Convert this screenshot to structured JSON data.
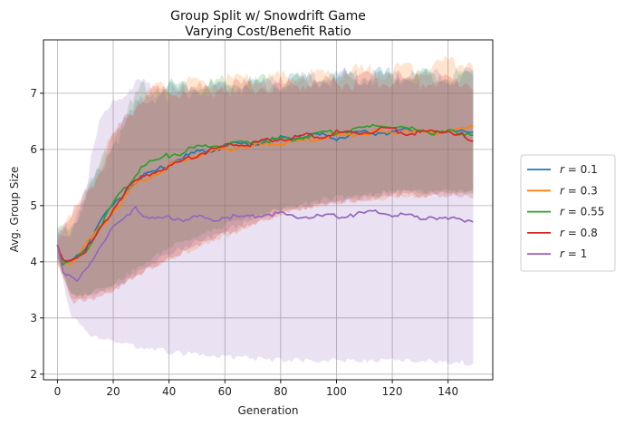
{
  "chart_data": {
    "type": "line",
    "title_lines": [
      "Group Split w/ Snowdrift Game",
      "Varying Cost/Benefit Ratio"
    ],
    "xlabel": "Generation",
    "ylabel": "Avg. Group Size",
    "xlim": [
      -5,
      156
    ],
    "ylim": [
      1.9,
      7.95
    ],
    "xticks": [
      0,
      20,
      40,
      60,
      80,
      100,
      120,
      140
    ],
    "yticks": [
      2,
      3,
      4,
      5,
      6,
      7
    ],
    "grid": true,
    "legend_position": "right-outside",
    "bands_shown": true,
    "series": [
      {
        "name": "r = 0.1",
        "legend_prefix": "r = ",
        "legend_value": "0.1",
        "color": "#1f77b4",
        "points": [
          [
            0,
            4.3
          ],
          [
            2,
            3.98
          ],
          [
            5,
            3.98
          ],
          [
            10,
            4.25
          ],
          [
            15,
            4.7
          ],
          [
            20,
            5.0
          ],
          [
            25,
            5.3
          ],
          [
            30,
            5.5
          ],
          [
            35,
            5.6
          ],
          [
            40,
            5.75
          ],
          [
            45,
            5.85
          ],
          [
            50,
            5.95
          ],
          [
            55,
            6.0
          ],
          [
            60,
            6.05
          ],
          [
            65,
            6.1
          ],
          [
            70,
            6.1
          ],
          [
            75,
            6.15
          ],
          [
            80,
            6.2
          ],
          [
            85,
            6.2
          ],
          [
            90,
            6.25
          ],
          [
            95,
            6.25
          ],
          [
            100,
            6.2
          ],
          [
            105,
            6.25
          ],
          [
            110,
            6.3
          ],
          [
            115,
            6.3
          ],
          [
            120,
            6.3
          ],
          [
            125,
            6.35
          ],
          [
            130,
            6.35
          ],
          [
            135,
            6.3
          ],
          [
            140,
            6.3
          ],
          [
            145,
            6.35
          ],
          [
            149,
            6.3
          ]
        ],
        "band": [
          [
            0,
            4.1,
            4.5
          ],
          [
            5,
            3.45,
            4.6
          ],
          [
            10,
            3.45,
            5.1
          ],
          [
            20,
            3.6,
            6.1
          ],
          [
            30,
            3.9,
            6.9
          ],
          [
            40,
            4.2,
            7.05
          ],
          [
            60,
            4.6,
            7.1
          ],
          [
            80,
            5.0,
            7.2
          ],
          [
            100,
            5.1,
            7.3
          ],
          [
            120,
            5.3,
            7.3
          ],
          [
            149,
            5.3,
            7.3
          ]
        ]
      },
      {
        "name": "r = 0.3",
        "legend_prefix": "r = ",
        "legend_value": "0.3",
        "color": "#ff7f0e",
        "points": [
          [
            0,
            4.3
          ],
          [
            2,
            4.0
          ],
          [
            5,
            4.0
          ],
          [
            10,
            4.3
          ],
          [
            15,
            4.6
          ],
          [
            20,
            4.9
          ],
          [
            25,
            5.2
          ],
          [
            30,
            5.45
          ],
          [
            35,
            5.55
          ],
          [
            40,
            5.7
          ],
          [
            45,
            5.8
          ],
          [
            50,
            5.9
          ],
          [
            55,
            5.95
          ],
          [
            60,
            6.0
          ],
          [
            65,
            6.05
          ],
          [
            70,
            6.05
          ],
          [
            75,
            6.1
          ],
          [
            80,
            6.1
          ],
          [
            85,
            6.15
          ],
          [
            90,
            6.15
          ],
          [
            95,
            6.2
          ],
          [
            100,
            6.25
          ],
          [
            105,
            6.25
          ],
          [
            110,
            6.3
          ],
          [
            115,
            6.3
          ],
          [
            120,
            6.3
          ],
          [
            125,
            6.35
          ],
          [
            130,
            6.3
          ],
          [
            135,
            6.3
          ],
          [
            140,
            6.35
          ],
          [
            145,
            6.35
          ],
          [
            149,
            6.4
          ]
        ],
        "band": [
          [
            0,
            4.05,
            4.55
          ],
          [
            5,
            3.4,
            4.7
          ],
          [
            10,
            3.4,
            5.2
          ],
          [
            20,
            3.55,
            6.2
          ],
          [
            30,
            3.85,
            7.0
          ],
          [
            40,
            4.1,
            7.1
          ],
          [
            60,
            4.5,
            7.2
          ],
          [
            80,
            4.9,
            7.25
          ],
          [
            100,
            5.1,
            7.35
          ],
          [
            120,
            5.2,
            7.4
          ],
          [
            149,
            5.3,
            7.6
          ]
        ]
      },
      {
        "name": "r = 0.55",
        "legend_prefix": "r = ",
        "legend_value": "0.55",
        "color": "#2ca02c",
        "points": [
          [
            0,
            4.3
          ],
          [
            2,
            3.95
          ],
          [
            5,
            4.0
          ],
          [
            10,
            4.2
          ],
          [
            15,
            4.6
          ],
          [
            20,
            5.05
          ],
          [
            25,
            5.35
          ],
          [
            30,
            5.7
          ],
          [
            35,
            5.8
          ],
          [
            40,
            5.9
          ],
          [
            45,
            5.95
          ],
          [
            50,
            6.05
          ],
          [
            55,
            6.05
          ],
          [
            60,
            6.1
          ],
          [
            65,
            6.1
          ],
          [
            70,
            6.15
          ],
          [
            75,
            6.15
          ],
          [
            80,
            6.2
          ],
          [
            85,
            6.2
          ],
          [
            90,
            6.25
          ],
          [
            95,
            6.3
          ],
          [
            100,
            6.3
          ],
          [
            105,
            6.35
          ],
          [
            110,
            6.35
          ],
          [
            115,
            6.45
          ],
          [
            120,
            6.4
          ],
          [
            125,
            6.35
          ],
          [
            130,
            6.35
          ],
          [
            135,
            6.3
          ],
          [
            140,
            6.3
          ],
          [
            145,
            6.3
          ],
          [
            149,
            6.3
          ]
        ],
        "band": [
          [
            0,
            4.1,
            4.55
          ],
          [
            5,
            3.45,
            4.65
          ],
          [
            10,
            3.45,
            5.15
          ],
          [
            20,
            3.65,
            6.25
          ],
          [
            30,
            4.0,
            7.05
          ],
          [
            40,
            4.3,
            7.15
          ],
          [
            60,
            4.7,
            7.15
          ],
          [
            80,
            5.0,
            7.2
          ],
          [
            100,
            5.2,
            7.25
          ],
          [
            120,
            5.3,
            7.3
          ],
          [
            149,
            5.3,
            7.25
          ]
        ]
      },
      {
        "name": "r = 0.8",
        "legend_prefix": "r = ",
        "legend_value": "0.8",
        "color": "#d62728",
        "points": [
          [
            0,
            4.3
          ],
          [
            2,
            4.0
          ],
          [
            5,
            4.05
          ],
          [
            10,
            4.2
          ],
          [
            15,
            4.55
          ],
          [
            20,
            4.95
          ],
          [
            25,
            5.3
          ],
          [
            30,
            5.5
          ],
          [
            35,
            5.6
          ],
          [
            40,
            5.7
          ],
          [
            45,
            5.8
          ],
          [
            50,
            5.9
          ],
          [
            55,
            6.0
          ],
          [
            60,
            6.05
          ],
          [
            65,
            6.1
          ],
          [
            70,
            6.1
          ],
          [
            75,
            6.15
          ],
          [
            80,
            6.2
          ],
          [
            85,
            6.2
          ],
          [
            90,
            6.25
          ],
          [
            95,
            6.25
          ],
          [
            100,
            6.3
          ],
          [
            105,
            6.3
          ],
          [
            110,
            6.3
          ],
          [
            115,
            6.35
          ],
          [
            120,
            6.35
          ],
          [
            125,
            6.3
          ],
          [
            130,
            6.3
          ],
          [
            135,
            6.3
          ],
          [
            140,
            6.35
          ],
          [
            145,
            6.25
          ],
          [
            149,
            6.1
          ]
        ],
        "band": [
          [
            0,
            4.05,
            4.55
          ],
          [
            5,
            3.35,
            4.75
          ],
          [
            10,
            3.35,
            5.2
          ],
          [
            20,
            3.55,
            6.15
          ],
          [
            30,
            3.85,
            6.95
          ],
          [
            40,
            4.1,
            7.05
          ],
          [
            60,
            4.55,
            7.1
          ],
          [
            80,
            4.9,
            7.15
          ],
          [
            100,
            5.1,
            7.2
          ],
          [
            120,
            5.25,
            7.25
          ],
          [
            149,
            5.2,
            7.2
          ]
        ]
      },
      {
        "name": "r = 1",
        "legend_prefix": "r = ",
        "legend_value": "1",
        "color": "#9467bd",
        "points": [
          [
            0,
            4.3
          ],
          [
            2,
            3.85
          ],
          [
            5,
            3.7
          ],
          [
            7,
            3.65
          ],
          [
            10,
            3.85
          ],
          [
            15,
            4.25
          ],
          [
            20,
            4.6
          ],
          [
            25,
            4.8
          ],
          [
            28,
            5.0
          ],
          [
            30,
            4.85
          ],
          [
            35,
            4.75
          ],
          [
            40,
            4.8
          ],
          [
            45,
            4.75
          ],
          [
            50,
            4.8
          ],
          [
            55,
            4.75
          ],
          [
            60,
            4.8
          ],
          [
            65,
            4.8
          ],
          [
            70,
            4.8
          ],
          [
            75,
            4.85
          ],
          [
            80,
            4.85
          ],
          [
            85,
            4.8
          ],
          [
            90,
            4.8
          ],
          [
            95,
            4.8
          ],
          [
            100,
            4.8
          ],
          [
            105,
            4.85
          ],
          [
            110,
            4.85
          ],
          [
            115,
            4.9
          ],
          [
            120,
            4.85
          ],
          [
            125,
            4.8
          ],
          [
            130,
            4.8
          ],
          [
            135,
            4.8
          ],
          [
            140,
            4.75
          ],
          [
            145,
            4.75
          ],
          [
            149,
            4.75
          ]
        ],
        "band": [
          [
            0,
            4.1,
            4.55
          ],
          [
            5,
            3.1,
            4.6
          ],
          [
            10,
            2.8,
            5.3
          ],
          [
            15,
            2.7,
            6.4
          ],
          [
            20,
            2.6,
            6.9
          ],
          [
            30,
            2.55,
            7.1
          ],
          [
            40,
            2.45,
            7.0
          ],
          [
            60,
            2.35,
            7.1
          ],
          [
            80,
            2.3,
            7.2
          ],
          [
            100,
            2.3,
            7.3
          ],
          [
            120,
            2.3,
            7.3
          ],
          [
            149,
            2.25,
            7.3
          ]
        ]
      }
    ]
  }
}
